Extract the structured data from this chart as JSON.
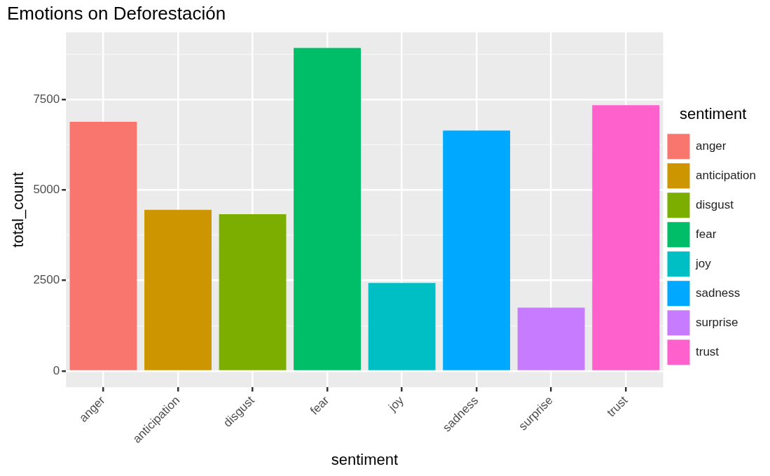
{
  "chart_data": {
    "type": "bar",
    "title": "Emotions on Deforestación",
    "xlabel": "sentiment",
    "ylabel": "total_count",
    "legend_title": "sentiment",
    "categories": [
      "anger",
      "anticipation",
      "disgust",
      "fear",
      "joy",
      "sadness",
      "surprise",
      "trust"
    ],
    "series": [
      {
        "name": "anger",
        "color": "#f8766d",
        "values": [
          6880,
          null,
          null,
          null,
          null,
          null,
          null,
          null
        ]
      },
      {
        "name": "anticipation",
        "color": "#cd9600",
        "values": [
          null,
          4450,
          null,
          null,
          null,
          null,
          null,
          null
        ]
      },
      {
        "name": "disgust",
        "color": "#7cae00",
        "values": [
          null,
          null,
          4330,
          null,
          null,
          null,
          null,
          null
        ]
      },
      {
        "name": "fear",
        "color": "#00be67",
        "values": [
          null,
          null,
          null,
          8920,
          null,
          null,
          null,
          null
        ]
      },
      {
        "name": "joy",
        "color": "#00bfc4",
        "values": [
          null,
          null,
          null,
          null,
          2430,
          null,
          null,
          null
        ]
      },
      {
        "name": "sadness",
        "color": "#00a9ff",
        "values": [
          null,
          null,
          null,
          null,
          null,
          6640,
          null,
          null
        ]
      },
      {
        "name": "surprise",
        "color": "#c77cff",
        "values": [
          null,
          null,
          null,
          null,
          null,
          null,
          1750,
          null
        ]
      },
      {
        "name": "trust",
        "color": "#ff61cc",
        "values": [
          null,
          null,
          null,
          null,
          null,
          null,
          null,
          7340
        ]
      }
    ],
    "ylim": [
      -450,
      9350
    ],
    "yticks": [
      0,
      {
        "value": 1250,
        "label": null
      },
      2500,
      {
        "value": 3750,
        "label": null
      },
      5000,
      {
        "value": 6250,
        "label": null
      },
      7500,
      {
        "value": 8750,
        "label": null
      }
    ],
    "grid": true,
    "legend": "right"
  }
}
